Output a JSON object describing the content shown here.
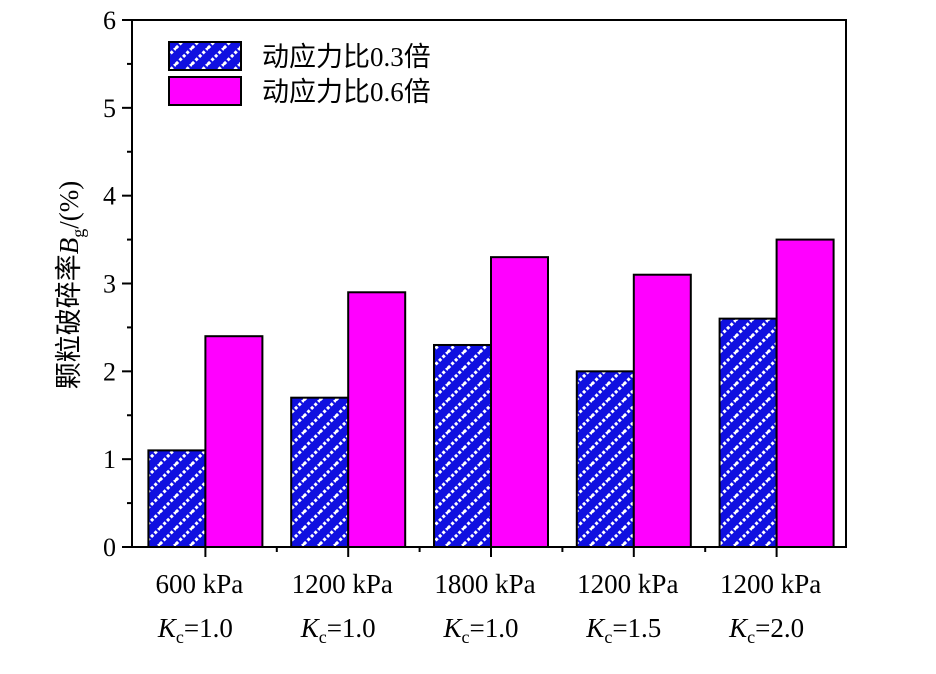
{
  "chart_data": {
    "type": "bar",
    "categories": [
      {
        "line1": "600 kPa",
        "k_symbol": "K",
        "k_sub": "c",
        "k_value": "=1.0"
      },
      {
        "line1": "1200 kPa",
        "k_symbol": "K",
        "k_sub": "c",
        "k_value": "=1.0"
      },
      {
        "line1": "1800 kPa",
        "k_symbol": "K",
        "k_sub": "c",
        "k_value": "=1.0"
      },
      {
        "line1": "1200 kPa",
        "k_symbol": "K",
        "k_sub": "c",
        "k_value": "=1.5"
      },
      {
        "line1": "1200 kPa",
        "k_symbol": "K",
        "k_sub": "c",
        "k_value": "=2.0"
      }
    ],
    "series": [
      {
        "name": "动应力比0.3倍",
        "values": [
          1.1,
          1.7,
          2.3,
          2.0,
          2.6
        ],
        "color": "#1010e0",
        "pattern": "hatched-diagonal-white"
      },
      {
        "name": "动应力比0.6倍",
        "values": [
          2.4,
          2.9,
          3.3,
          3.1,
          3.5
        ],
        "color": "#ff00ff",
        "pattern": "solid"
      }
    ],
    "ylabel": {
      "text": "颗粒破碎率",
      "symbol": "B",
      "sub": "g",
      "suffix": "/(%)"
    },
    "xlabel": "",
    "ylim": [
      0,
      6
    ],
    "yticks": [
      "0",
      "1",
      "2",
      "3",
      "4",
      "5",
      "6"
    ],
    "grid": false,
    "legend_position": "top-left"
  }
}
